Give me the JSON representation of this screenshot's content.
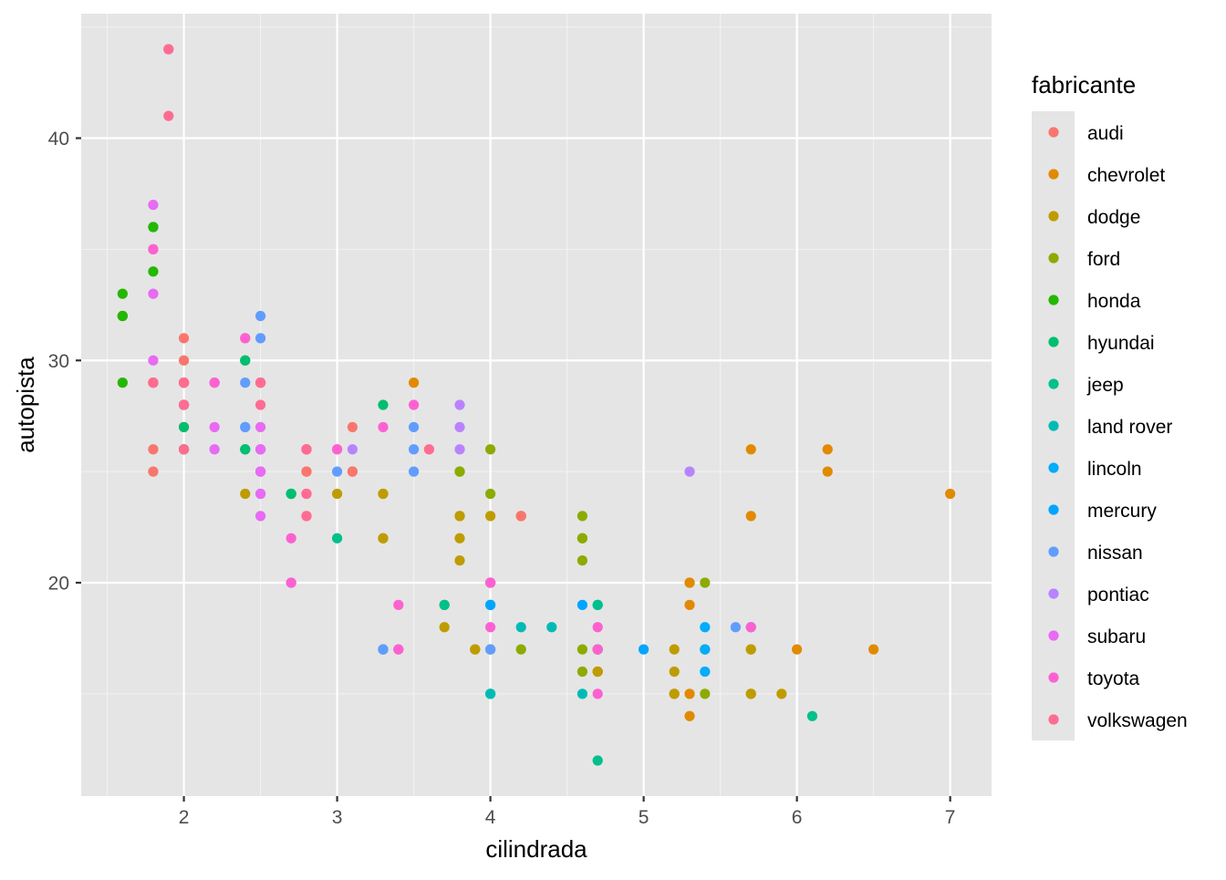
{
  "chart_data": {
    "type": "scatter",
    "title": "",
    "xlabel": "cilindrada",
    "ylabel": "autopista",
    "xlim": [
      1.33,
      7.27
    ],
    "ylim": [
      10.4,
      45.6
    ],
    "x_ticks": [
      2,
      3,
      4,
      5,
      6,
      7
    ],
    "x_tick_labels": [
      "2",
      "3",
      "4",
      "5",
      "6",
      "7"
    ],
    "y_ticks": [
      20,
      30,
      40
    ],
    "y_tick_labels": [
      "20",
      "30",
      "40"
    ],
    "grid": true,
    "panel_background": "#e5e5e5",
    "legend": {
      "title": "fabricante",
      "position": "right"
    },
    "series": [
      {
        "name": "audi",
        "color": "#F8766D",
        "points": [
          [
            1.8,
            29
          ],
          [
            1.8,
            29
          ],
          [
            2.0,
            31
          ],
          [
            2.0,
            30
          ],
          [
            2.8,
            26
          ],
          [
            2.8,
            26
          ],
          [
            3.1,
            27
          ],
          [
            1.8,
            26
          ],
          [
            1.8,
            25
          ],
          [
            2.0,
            28
          ],
          [
            2.0,
            27
          ],
          [
            2.8,
            25
          ],
          [
            2.8,
            25
          ],
          [
            3.1,
            25
          ],
          [
            3.1,
            25
          ],
          [
            4.2,
            23
          ],
          [
            4.2,
            23
          ],
          [
            4.2,
            23
          ]
        ]
      },
      {
        "name": "chevrolet",
        "color": "#E18A00",
        "points": [
          [
            5.3,
            20
          ],
          [
            5.3,
            15
          ],
          [
            5.3,
            20
          ],
          [
            5.7,
            17
          ],
          [
            6.0,
            17
          ],
          [
            5.7,
            26
          ],
          [
            5.7,
            23
          ],
          [
            6.2,
            26
          ],
          [
            6.2,
            25
          ],
          [
            7.0,
            24
          ],
          [
            5.3,
            19
          ],
          [
            5.3,
            14
          ],
          [
            5.7,
            15
          ],
          [
            6.5,
            17
          ],
          [
            3.5,
            29
          ]
        ]
      },
      {
        "name": "dodge",
        "color": "#BE9C00",
        "points": [
          [
            2.4,
            24
          ],
          [
            3.0,
            24
          ],
          [
            3.3,
            22
          ],
          [
            3.3,
            22
          ],
          [
            3.3,
            24
          ],
          [
            3.3,
            24
          ],
          [
            3.3,
            17
          ],
          [
            3.8,
            22
          ],
          [
            3.8,
            21
          ],
          [
            3.8,
            23
          ],
          [
            3.8,
            23
          ],
          [
            4.0,
            23
          ],
          [
            3.7,
            19
          ],
          [
            3.7,
            18
          ],
          [
            3.9,
            17
          ],
          [
            3.9,
            17
          ],
          [
            4.7,
            16
          ],
          [
            4.7,
            16
          ],
          [
            4.7,
            17
          ],
          [
            5.2,
            15
          ],
          [
            5.2,
            15
          ],
          [
            5.7,
            17
          ],
          [
            5.9,
            15
          ],
          [
            4.7,
            17
          ],
          [
            4.7,
            16
          ],
          [
            5.2,
            16
          ],
          [
            5.2,
            17
          ],
          [
            5.7,
            15
          ]
        ]
      },
      {
        "name": "ford",
        "color": "#8CAB00",
        "points": [
          [
            3.8,
            25
          ],
          [
            3.8,
            25
          ],
          [
            4.0,
            26
          ],
          [
            4.0,
            24
          ],
          [
            4.0,
            17
          ],
          [
            4.2,
            17
          ],
          [
            4.6,
            17
          ],
          [
            4.6,
            16
          ],
          [
            4.6,
            21
          ],
          [
            4.6,
            22
          ],
          [
            4.6,
            23
          ],
          [
            4.6,
            22
          ],
          [
            5.4,
            20
          ],
          [
            5.4,
            15
          ],
          [
            5.4,
            17
          ]
        ]
      },
      {
        "name": "honda",
        "color": "#24B700",
        "points": [
          [
            1.6,
            33
          ],
          [
            1.6,
            32
          ],
          [
            1.6,
            32
          ],
          [
            1.6,
            29
          ],
          [
            1.6,
            32
          ],
          [
            1.8,
            34
          ],
          [
            1.8,
            36
          ],
          [
            1.8,
            36
          ],
          [
            2.0,
            29
          ]
        ]
      },
      {
        "name": "hyundai",
        "color": "#00BE70",
        "points": [
          [
            2.0,
            26
          ],
          [
            2.0,
            27
          ],
          [
            2.0,
            26
          ],
          [
            2.0,
            28
          ],
          [
            2.7,
            24
          ],
          [
            2.7,
            24
          ],
          [
            2.7,
            24
          ],
          [
            2.4,
            30
          ],
          [
            2.4,
            30
          ],
          [
            2.4,
            26
          ],
          [
            3.3,
            28
          ],
          [
            2.4,
            26
          ]
        ]
      },
      {
        "name": "jeep",
        "color": "#00C08B",
        "points": [
          [
            3.0,
            22
          ],
          [
            3.7,
            19
          ],
          [
            4.0,
            20
          ],
          [
            4.7,
            17
          ],
          [
            4.7,
            19
          ],
          [
            4.7,
            19
          ],
          [
            5.7,
            18
          ],
          [
            6.1,
            14
          ],
          [
            4.0,
            15
          ],
          [
            4.7,
            12
          ]
        ]
      },
      {
        "name": "land rover",
        "color": "#00BBB5",
        "points": [
          [
            4.0,
            15
          ],
          [
            4.2,
            18
          ],
          [
            4.4,
            18
          ],
          [
            4.6,
            15
          ]
        ]
      },
      {
        "name": "lincoln",
        "color": "#00ACFC",
        "points": [
          [
            5.4,
            17
          ],
          [
            5.4,
            16
          ],
          [
            5.4,
            18
          ]
        ]
      },
      {
        "name": "mercury",
        "color": "#00A5FF",
        "points": [
          [
            4.0,
            19
          ],
          [
            4.0,
            19
          ],
          [
            4.6,
            19
          ],
          [
            5.0,
            17
          ]
        ]
      },
      {
        "name": "nissan",
        "color": "#619CFF",
        "points": [
          [
            2.4,
            29
          ],
          [
            2.4,
            27
          ],
          [
            2.5,
            31
          ],
          [
            2.5,
            32
          ],
          [
            3.5,
            27
          ],
          [
            3.5,
            26
          ],
          [
            3.0,
            25
          ],
          [
            3.5,
            25
          ],
          [
            3.3,
            17
          ],
          [
            3.3,
            17
          ],
          [
            4.0,
            17
          ],
          [
            5.6,
            18
          ],
          [
            2.4,
            27
          ]
        ]
      },
      {
        "name": "pontiac",
        "color": "#B983FF",
        "points": [
          [
            3.1,
            26
          ],
          [
            3.8,
            27
          ],
          [
            3.8,
            26
          ],
          [
            3.8,
            28
          ],
          [
            5.3,
            25
          ]
        ]
      },
      {
        "name": "subaru",
        "color": "#E76BF3",
        "points": [
          [
            2.5,
            26
          ],
          [
            2.5,
            26
          ],
          [
            2.5,
            27
          ],
          [
            2.5,
            25
          ],
          [
            2.5,
            24
          ],
          [
            2.5,
            25
          ],
          [
            2.2,
            26
          ],
          [
            2.2,
            27
          ],
          [
            2.5,
            25
          ],
          [
            2.5,
            23
          ],
          [
            2.5,
            24
          ],
          [
            2.5,
            26
          ],
          [
            1.8,
            30
          ],
          [
            1.8,
            33
          ],
          [
            1.8,
            37
          ],
          [
            1.8,
            35
          ]
        ]
      },
      {
        "name": "toyota",
        "color": "#FD61D1",
        "points": [
          [
            2.7,
            20
          ],
          [
            2.7,
            20
          ],
          [
            3.4,
            19
          ],
          [
            3.4,
            17
          ],
          [
            4.0,
            20
          ],
          [
            4.7,
            15
          ],
          [
            4.7,
            18
          ],
          [
            2.2,
            29
          ],
          [
            2.2,
            29
          ],
          [
            2.4,
            31
          ],
          [
            2.4,
            31
          ],
          [
            3.0,
            26
          ],
          [
            3.0,
            26
          ],
          [
            3.5,
            28
          ],
          [
            1.8,
            35
          ],
          [
            1.8,
            29
          ],
          [
            4.0,
            18
          ],
          [
            4.0,
            20
          ],
          [
            4.7,
            17
          ],
          [
            5.7,
            18
          ],
          [
            2.7,
            22
          ],
          [
            3.3,
            27
          ],
          [
            2.8,
            24
          ],
          [
            2.5,
            29
          ],
          [
            3.4,
            17
          ]
        ]
      },
      {
        "name": "volkswagen",
        "color": "#FF6C91",
        "points": [
          [
            2.0,
            29
          ],
          [
            2.0,
            29
          ],
          [
            2.8,
            23
          ],
          [
            1.9,
            44
          ],
          [
            2.0,
            29
          ],
          [
            2.0,
            26
          ],
          [
            2.5,
            29
          ],
          [
            2.5,
            29
          ],
          [
            1.8,
            29
          ],
          [
            1.8,
            29
          ],
          [
            2.0,
            28
          ],
          [
            2.0,
            29
          ],
          [
            2.8,
            26
          ],
          [
            1.9,
            41
          ],
          [
            2.0,
            28
          ],
          [
            2.0,
            29
          ],
          [
            2.8,
            26
          ],
          [
            2.8,
            24
          ],
          [
            3.6,
            26
          ],
          [
            1.9,
            44
          ],
          [
            2.5,
            28
          ],
          [
            2.8,
            23
          ],
          [
            2.0,
            26
          ],
          [
            2.0,
            29
          ]
        ]
      }
    ]
  }
}
